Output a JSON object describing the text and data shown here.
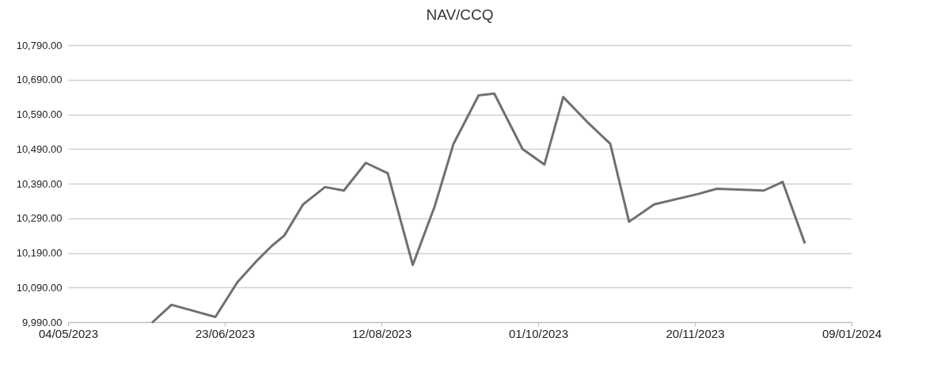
{
  "chart_data": {
    "type": "line",
    "title": "NAV/CCQ",
    "x": [
      "2023-05-31",
      "2023-06-06",
      "2023-06-20",
      "2023-06-27",
      "2023-07-03",
      "2023-07-08",
      "2023-07-12",
      "2023-07-18",
      "2023-07-25",
      "2023-07-31",
      "2023-08-07",
      "2023-08-14",
      "2023-08-22",
      "2023-08-29",
      "2023-09-04",
      "2023-09-12",
      "2023-09-17",
      "2023-09-26",
      "2023-10-03",
      "2023-10-09",
      "2023-10-17",
      "2023-10-24",
      "2023-10-30",
      "2023-11-07",
      "2023-11-21",
      "2023-11-27",
      "2023-12-12",
      "2023-12-18",
      "2023-12-25"
    ],
    "series": [
      {
        "color": "#707070",
        "values": [
          9990,
          10040,
          10005,
          10105,
          10165,
          10210,
          10240,
          10330,
          10380,
          10370,
          10450,
          10420,
          10155,
          10325,
          10505,
          10645,
          10650,
          10490,
          10445,
          10640,
          10565,
          10505,
          10280,
          10330,
          10360,
          10375,
          10370,
          10395,
          10220
        ]
      }
    ],
    "xlim": [
      "2023-05-04",
      "2024-01-09"
    ],
    "xticks": [
      {
        "value": "2023-05-04",
        "label": "04/05/2023"
      },
      {
        "value": "2023-06-23",
        "label": "23/06/2023"
      },
      {
        "value": "2023-08-12",
        "label": "12/08/2023"
      },
      {
        "value": "2023-10-01",
        "label": "01/10/2023"
      },
      {
        "value": "2023-11-20",
        "label": "20/11/2023"
      },
      {
        "value": "2024-01-09",
        "label": "09/01/2024"
      }
    ],
    "ylim": [
      9990,
      10790
    ],
    "yticks": [
      {
        "value": 9990,
        "label": "9,990.00"
      },
      {
        "value": 10090,
        "label": "10,090.00"
      },
      {
        "value": 10190,
        "label": "10,190.00"
      },
      {
        "value": 10290,
        "label": "10,290.00"
      },
      {
        "value": 10390,
        "label": "10,390.00"
      },
      {
        "value": 10490,
        "label": "10,490.00"
      },
      {
        "value": 10590,
        "label": "10,590.00"
      },
      {
        "value": 10690,
        "label": "10,690.00"
      },
      {
        "value": 10790,
        "label": "10,790.00"
      }
    ],
    "grid": "y",
    "legend": false,
    "marker": "none",
    "line_style": "solid"
  }
}
